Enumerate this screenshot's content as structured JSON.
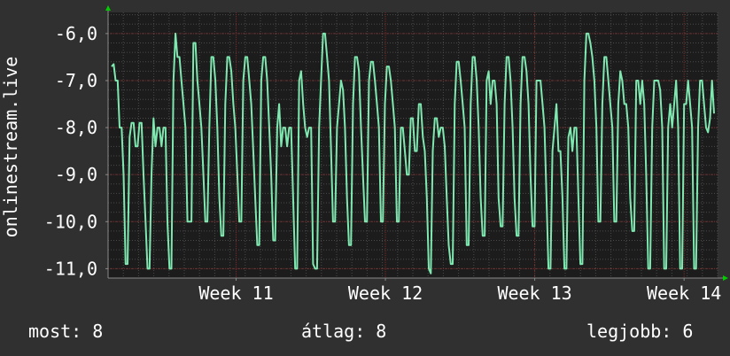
{
  "colors": {
    "background": "#303030",
    "plot_background": "#1c1c1c",
    "grid_major": "#7a2a2a",
    "grid_minor": "#4a4a4a",
    "line": "#7fe8b0",
    "axis": "#8a8a8a",
    "arrow": "#00cc00",
    "text": "#ffffff"
  },
  "chart_data": {
    "type": "line",
    "ylabel": "onlinestream.live",
    "ylim": [
      -11.2,
      -5.55
    ],
    "yticks": [
      -11,
      -10,
      -9,
      -8,
      -7,
      -6
    ],
    "ytick_labels": [
      "-11,0",
      "-10,0",
      "-9,0",
      "-8,0",
      "-7,0",
      "-6,0"
    ],
    "xlim": [
      0,
      100
    ],
    "xticks": [
      {
        "x": 21,
        "label": "Week 11"
      },
      {
        "x": 45.5,
        "label": "Week 12"
      },
      {
        "x": 70,
        "label": "Week 13"
      },
      {
        "x": 94.5,
        "label": "Week 14"
      }
    ],
    "grid": true,
    "series": [
      {
        "values": [
          -6.7,
          -6.65,
          -7.0,
          -7.0,
          -8.0,
          -8.0,
          -9.0,
          -10.9,
          -10.9,
          -8.2,
          -7.9,
          -7.9,
          -8.4,
          -8.4,
          -7.9,
          -7.9,
          -9.0,
          -10.0,
          -11.0,
          -11.0,
          -9.0,
          -7.8,
          -8.4,
          -8.0,
          -8.0,
          -8.4,
          -8.0,
          -8.0,
          -10.0,
          -11.0,
          -11.0,
          -7.0,
          -6.0,
          -6.5,
          -6.5,
          -7.0,
          -7.5,
          -8.0,
          -10.0,
          -10.0,
          -10.0,
          -6.2,
          -6.2,
          -7.0,
          -7.5,
          -8.0,
          -9.0,
          -10.0,
          -10.0,
          -8.0,
          -6.5,
          -6.5,
          -7.0,
          -8.0,
          -9.5,
          -10.3,
          -10.3,
          -7.5,
          -6.5,
          -6.5,
          -6.8,
          -7.5,
          -8.0,
          -9.0,
          -10.0,
          -10.0,
          -7.0,
          -6.5,
          -6.5,
          -7.0,
          -7.5,
          -8.5,
          -9.5,
          -10.5,
          -10.5,
          -7.0,
          -6.5,
          -6.5,
          -7.0,
          -8.0,
          -9.0,
          -10.4,
          -10.4,
          -8.0,
          -7.5,
          -8.4,
          -8.0,
          -8.0,
          -8.4,
          -8.0,
          -8.0,
          -9.5,
          -11.0,
          -11.0,
          -7.0,
          -6.8,
          -7.5,
          -8.0,
          -8.2,
          -8.0,
          -8.0,
          -10.9,
          -11.0,
          -11.0,
          -8.0,
          -7.0,
          -6.0,
          -6.0,
          -6.5,
          -7.0,
          -8.5,
          -10.0,
          -10.0,
          -8.0,
          -7.5,
          -7.0,
          -7.2,
          -8.0,
          -9.5,
          -10.5,
          -10.5,
          -7.5,
          -6.5,
          -6.5,
          -6.8,
          -8.0,
          -9.0,
          -10.0,
          -10.0,
          -7.0,
          -6.6,
          -6.6,
          -7.0,
          -7.5,
          -8.0,
          -10.0,
          -10.0,
          -7.5,
          -6.7,
          -6.7,
          -7.0,
          -7.5,
          -8.0,
          -10.0,
          -10.0,
          -8.0,
          -8.0,
          -8.5,
          -9.0,
          -9.0,
          -7.8,
          -7.8,
          -8.5,
          -8.5,
          -7.5,
          -7.5,
          -8.2,
          -8.5,
          -9.5,
          -11.0,
          -11.1,
          -8.5,
          -7.8,
          -7.8,
          -8.2,
          -8.0,
          -8.0,
          -8.4,
          -9.5,
          -10.5,
          -10.9,
          -10.9,
          -7.5,
          -6.6,
          -6.6,
          -7.0,
          -7.5,
          -8.0,
          -10.5,
          -10.5,
          -7.5,
          -6.5,
          -6.5,
          -7.0,
          -8.0,
          -9.5,
          -10.3,
          -10.3,
          -7.0,
          -6.8,
          -7.5,
          -7.0,
          -7.0,
          -7.5,
          -9.5,
          -10.1,
          -10.1,
          -7.5,
          -6.5,
          -6.5,
          -7.0,
          -8.0,
          -9.5,
          -10.3,
          -10.3,
          -7.5,
          -6.5,
          -6.5,
          -6.8,
          -7.5,
          -9.0,
          -10.1,
          -10.1,
          -7.0,
          -7.0,
          -7.0,
          -7.5,
          -8.0,
          -9.5,
          -11.0,
          -11.0,
          -8.5,
          -8.0,
          -7.5,
          -8.5,
          -8.5,
          -9.5,
          -11.0,
          -11.0,
          -8.2,
          -8.0,
          -8.5,
          -8.0,
          -8.0,
          -9.5,
          -10.9,
          -10.9,
          -7.0,
          -6.0,
          -6.0,
          -6.2,
          -6.5,
          -7.0,
          -8.0,
          -10.0,
          -10.0,
          -7.5,
          -6.5,
          -6.5,
          -7.0,
          -7.5,
          -8.0,
          -10.0,
          -10.0,
          -7.5,
          -6.8,
          -7.0,
          -7.5,
          -7.5,
          -8.0,
          -9.5,
          -10.2,
          -10.2,
          -7.0,
          -7.0,
          -7.5,
          -7.0,
          -7.5,
          -9.0,
          -11.0,
          -11.0,
          -8.0,
          -7.0,
          -7.0,
          -7.0,
          -7.2,
          -8.0,
          -11.0,
          -11.0,
          -8.0,
          -7.5,
          -8.0,
          -7.5,
          -7.0,
          -8.0,
          -11.0,
          -11.0,
          -7.5,
          -7.5,
          -7.0,
          -7.5,
          -8.0,
          -11.0,
          -11.0,
          -8.0,
          -7.0,
          -7.0,
          -7.5,
          -8.0,
          -8.1,
          -7.8,
          -7.0,
          -7.7
        ],
        "color": "#7fe8b0"
      }
    ],
    "legend_text": {
      "now": "most: 8",
      "avg": "átlag: 8",
      "max": "legjobb: 6"
    }
  }
}
